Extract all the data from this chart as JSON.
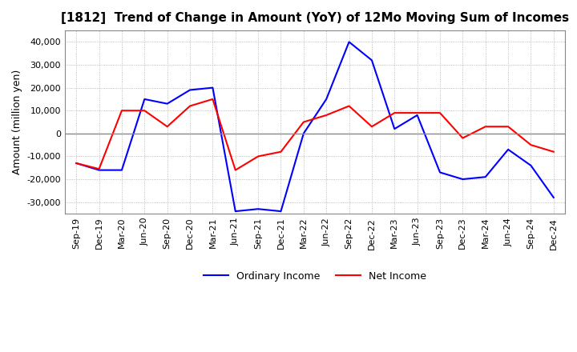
{
  "title": "[1812]  Trend of Change in Amount (YoY) of 12Mo Moving Sum of Incomes",
  "ylabel": "Amount (million yen)",
  "ylim": [
    -35000,
    45000
  ],
  "yticks": [
    -30000,
    -20000,
    -10000,
    0,
    10000,
    20000,
    30000,
    40000
  ],
  "x_labels": [
    "Sep-19",
    "Dec-19",
    "Mar-20",
    "Jun-20",
    "Sep-20",
    "Dec-20",
    "Mar-21",
    "Jun-21",
    "Sep-21",
    "Dec-21",
    "Mar-22",
    "Jun-22",
    "Sep-22",
    "Dec-22",
    "Mar-23",
    "Jun-23",
    "Sep-23",
    "Dec-23",
    "Mar-24",
    "Jun-24",
    "Sep-24",
    "Dec-24"
  ],
  "ordinary_income": [
    -13000,
    -16000,
    -16000,
    15000,
    13000,
    19000,
    20000,
    -34000,
    -33000,
    -34000,
    0,
    15000,
    40000,
    32000,
    2000,
    8000,
    -17000,
    -20000,
    -19000,
    -7000,
    -14000,
    -28000
  ],
  "net_income": [
    -13000,
    -15500,
    10000,
    10000,
    3000,
    12000,
    15000,
    -16000,
    -10000,
    -8000,
    5000,
    8000,
    12000,
    3000,
    9000,
    9000,
    9000,
    -2000,
    3000,
    3000,
    -5000,
    -8000
  ],
  "ordinary_color": "#0000FF",
  "net_color": "#FF0000",
  "grid_color": "#AAAAAA",
  "zero_line_color": "#888888",
  "background_color": "#FFFFFF",
  "title_fontsize": 11,
  "axis_fontsize": 8,
  "ylabel_fontsize": 9,
  "legend_fontsize": 9
}
